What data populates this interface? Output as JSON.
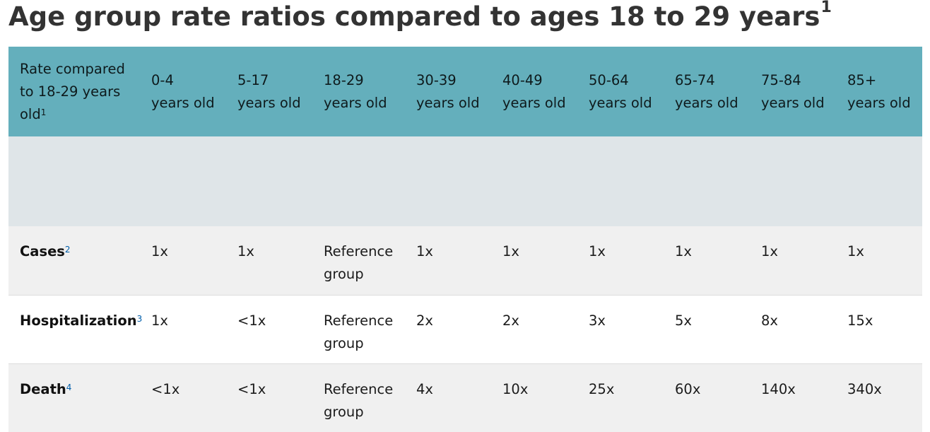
{
  "title": "Age group rate ratios compared to ages 18 to 29 years",
  "title_footnote": "1",
  "header": {
    "corner": {
      "lines": [
        "Rate compared",
        "to 18-29 years",
        "old"
      ],
      "footnote": "1"
    },
    "columns": [
      {
        "range": "0-4",
        "unit": "years old"
      },
      {
        "range": "5-17",
        "unit": "years old"
      },
      {
        "range": "18-29",
        "unit": "years old"
      },
      {
        "range": "30-39",
        "unit": "years old"
      },
      {
        "range": "40-49",
        "unit": "years old"
      },
      {
        "range": "50-64",
        "unit": "years old"
      },
      {
        "range": "65-74",
        "unit": "years old"
      },
      {
        "range": "75-84",
        "unit": "years old"
      },
      {
        "range": "85+",
        "unit": "years old"
      }
    ]
  },
  "rows": [
    {
      "label": "Cases",
      "footnote": "2",
      "values": [
        "1x",
        "1x",
        "Reference group",
        "1x",
        "1x",
        "1x",
        "1x",
        "1x",
        "1x"
      ]
    },
    {
      "label": "Hospitalization",
      "footnote": "3",
      "values": [
        "1x",
        "<1x",
        "Reference group",
        "2x",
        "2x",
        "3x",
        "5x",
        "8x",
        "15x"
      ]
    },
    {
      "label": "Death",
      "footnote": "4",
      "values": [
        "<1x",
        "<1x",
        "Reference group",
        "4x",
        "10x",
        "25x",
        "60x",
        "140x",
        "340x"
      ]
    }
  ],
  "reference_group_lines": [
    "Reference",
    "group"
  ],
  "colors": {
    "header_bg": "#64afbc",
    "row_shaded": "#f0f0f0",
    "footnote_link": "#005eaa",
    "title": "#333333"
  }
}
